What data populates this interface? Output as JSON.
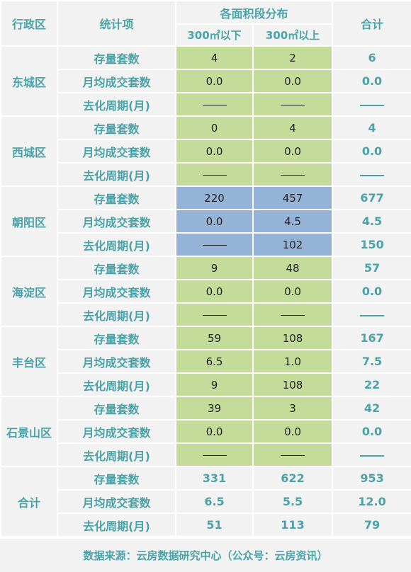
{
  "header": {
    "district": "行政区",
    "metric": "统计项",
    "area_group": "各面积段分布",
    "area_small": "300㎡以下",
    "area_large": "300㎡以上",
    "total": "合计"
  },
  "metrics": [
    "存量套数",
    "月均成交套数",
    "去化周期(月)"
  ],
  "districts": [
    {
      "name": "东城区",
      "highlight": "green",
      "small": [
        "4",
        "0.0",
        "——"
      ],
      "large": [
        "2",
        "0.0",
        "——"
      ],
      "total": [
        "6",
        "0.0",
        "——"
      ]
    },
    {
      "name": "西城区",
      "highlight": "green",
      "small": [
        "0",
        "0.0",
        "——"
      ],
      "large": [
        "4",
        "0.0",
        "——"
      ],
      "total": [
        "4",
        "0.0",
        "——"
      ]
    },
    {
      "name": "朝阳区",
      "highlight": "blue",
      "small": [
        "220",
        "0.0",
        "——"
      ],
      "large": [
        "457",
        "4.5",
        "102"
      ],
      "total": [
        "677",
        "4.5",
        "150"
      ]
    },
    {
      "name": "海淀区",
      "highlight": "green",
      "small": [
        "9",
        "0.0",
        "——"
      ],
      "large": [
        "48",
        "0.0",
        "——"
      ],
      "total": [
        "57",
        "0.0",
        "——"
      ]
    },
    {
      "name": "丰台区",
      "highlight": "green",
      "small": [
        "59",
        "6.5",
        "9"
      ],
      "large": [
        "108",
        "1.0",
        "108"
      ],
      "total": [
        "167",
        "7.5",
        "22"
      ]
    },
    {
      "name": "石景山区",
      "highlight": "green",
      "small": [
        "39",
        "0.0",
        "——"
      ],
      "large": [
        "3",
        "0.0",
        "——"
      ],
      "total": [
        "42",
        "0.0",
        "——"
      ]
    }
  ],
  "summary": {
    "name": "合计",
    "small": [
      "331",
      "6.5",
      "51"
    ],
    "large": [
      "622",
      "5.5",
      "113"
    ],
    "total": [
      "953",
      "12.0",
      "79"
    ]
  },
  "colors": {
    "text_accent": "#4aa3a8",
    "cell_green": "#c5db9a",
    "cell_blue": "#95b3d7",
    "background": "#f2f2f2"
  },
  "footer": {
    "source": "数据来源：云房数据研究中心（公众号：云房资讯）"
  }
}
